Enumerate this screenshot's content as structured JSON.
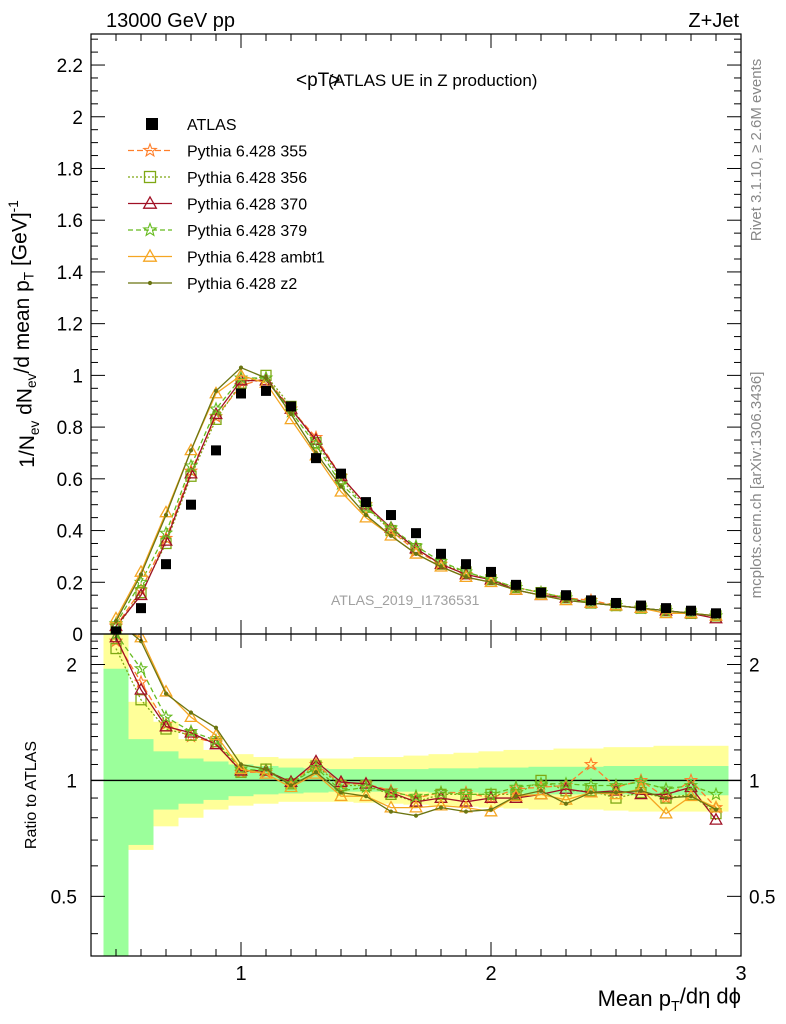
{
  "header": {
    "left": "13000 GeV pp",
    "right": "Z+Jet"
  },
  "side": {
    "rivet": "Rivet 3.1.10, ≥ 2.6M events",
    "mcplots": "mcplots.cern.ch [arXiv:1306.3436]"
  },
  "main_panel": {
    "title": "<pT>",
    "subtitle": "(ATLAS UE in Z production)",
    "ylabel": "1/N_ev dN_ev/d mean p_T [GeV]^-1",
    "analysis": "ATLAS_2019_I1736531"
  },
  "ratio_panel": {
    "ylabel": "Ratio to ATLAS"
  },
  "xlabel": "Mean p_T/dη dϕ",
  "colors": {
    "band_inner": "#9bff9b",
    "band_outer": "#ffff99",
    "data": "#000000"
  },
  "chart_data": [
    {
      "type": "line",
      "panel": "main",
      "xlim": [
        0.4,
        3.0
      ],
      "ylim": [
        0,
        2.32
      ],
      "xticks": [
        1,
        2,
        3
      ],
      "yticks": [
        0,
        0.2,
        0.4,
        0.6,
        0.8,
        1,
        1.2,
        1.4,
        1.6,
        1.8,
        2,
        2.2
      ],
      "ytick_labels": [
        "0",
        "0.2",
        "0.4",
        "0.6",
        "0.8",
        "1",
        "1.2",
        "1.4",
        "1.6",
        "1.8",
        "2",
        "2.2"
      ],
      "x": [
        0.5,
        0.6,
        0.7,
        0.8,
        0.9,
        1.0,
        1.1,
        1.2,
        1.3,
        1.4,
        1.5,
        1.6,
        1.7,
        1.8,
        1.9,
        2.0,
        2.1,
        2.2,
        2.3,
        2.4,
        2.5,
        2.6,
        2.7,
        2.8,
        2.9
      ],
      "data": {
        "name": "ATLAS",
        "values": [
          0.01,
          0.1,
          0.27,
          0.5,
          0.71,
          0.93,
          0.94,
          0.88,
          0.68,
          0.62,
          0.51,
          0.46,
          0.39,
          0.31,
          0.27,
          0.24,
          0.19,
          0.16,
          0.15,
          0.13,
          0.12,
          0.11,
          0.1,
          0.09,
          0.08
        ]
      },
      "series": [
        {
          "name": "Pythia 6.428 355",
          "color": "#ff7f2a",
          "dash": "6,3",
          "marker": "star",
          "values": [
            0.03,
            0.17,
            0.37,
            0.63,
            0.84,
            0.96,
            0.99,
            0.87,
            0.76,
            0.61,
            0.5,
            0.4,
            0.32,
            0.27,
            0.23,
            0.21,
            0.18,
            0.16,
            0.14,
            0.13,
            0.11,
            0.1,
            0.09,
            0.08,
            0.07
          ]
        },
        {
          "name": "Pythia 6.428 356",
          "color": "#7fa814",
          "dash": "2,2",
          "marker": "square",
          "values": [
            0.02,
            0.16,
            0.35,
            0.61,
            0.83,
            0.97,
            1.0,
            0.88,
            0.74,
            0.6,
            0.49,
            0.4,
            0.33,
            0.27,
            0.24,
            0.21,
            0.18,
            0.16,
            0.14,
            0.12,
            0.11,
            0.1,
            0.09,
            0.08,
            0.07
          ]
        },
        {
          "name": "Pythia 6.428 370",
          "color": "#a01025",
          "dash": "",
          "marker": "triangle",
          "values": [
            0.03,
            0.15,
            0.36,
            0.62,
            0.85,
            0.98,
            0.98,
            0.87,
            0.75,
            0.61,
            0.5,
            0.41,
            0.33,
            0.27,
            0.23,
            0.21,
            0.17,
            0.15,
            0.14,
            0.12,
            0.11,
            0.1,
            0.09,
            0.08,
            0.06
          ]
        },
        {
          "name": "Pythia 6.428 379",
          "color": "#66bb1f",
          "dash": "5,3",
          "marker": "star",
          "values": [
            0.04,
            0.2,
            0.39,
            0.65,
            0.87,
            0.99,
            0.99,
            0.86,
            0.73,
            0.58,
            0.49,
            0.41,
            0.34,
            0.28,
            0.24,
            0.21,
            0.18,
            0.16,
            0.14,
            0.12,
            0.11,
            0.1,
            0.09,
            0.08,
            0.07
          ]
        },
        {
          "name": "Pythia 6.428 ambt1",
          "color": "#f5a623",
          "dash": "",
          "marker": "triangle",
          "values": [
            0.06,
            0.24,
            0.47,
            0.71,
            0.93,
            1.0,
            0.97,
            0.83,
            0.69,
            0.55,
            0.45,
            0.38,
            0.31,
            0.26,
            0.22,
            0.2,
            0.17,
            0.15,
            0.13,
            0.12,
            0.11,
            0.1,
            0.08,
            0.08,
            0.07
          ]
        },
        {
          "name": "Pythia 6.428 z2",
          "color": "#6b7512",
          "dash": "",
          "marker": "dot",
          "values": [
            0.05,
            0.23,
            0.46,
            0.71,
            0.94,
            1.03,
            0.99,
            0.85,
            0.7,
            0.57,
            0.46,
            0.38,
            0.31,
            0.26,
            0.22,
            0.2,
            0.17,
            0.15,
            0.13,
            0.12,
            0.11,
            0.1,
            0.09,
            0.08,
            0.07
          ]
        }
      ]
    },
    {
      "type": "line",
      "panel": "ratio",
      "xlim": [
        0.4,
        3.0
      ],
      "ylim": [
        0.35,
        2.4
      ],
      "yscale": "log",
      "yticks": [
        0.5,
        1,
        2
      ],
      "ytick_labels": [
        "0.5",
        "1",
        "2"
      ],
      "x": [
        0.5,
        0.6,
        0.7,
        0.8,
        0.9,
        1.0,
        1.1,
        1.2,
        1.3,
        1.4,
        1.5,
        1.6,
        1.7,
        1.8,
        1.9,
        2.0,
        2.1,
        2.2,
        2.3,
        2.4,
        2.5,
        2.6,
        2.7,
        2.8,
        2.9
      ],
      "band_inner": {
        "low": [
          0.3,
          0.68,
          0.84,
          0.87,
          0.89,
          0.91,
          0.92,
          0.925,
          0.93,
          0.935,
          0.935,
          0.935,
          0.935,
          0.93,
          0.93,
          0.925,
          0.925,
          0.92,
          0.92,
          0.92,
          0.92,
          0.915,
          0.915,
          0.915,
          0.915
        ],
        "high": [
          1.95,
          1.28,
          1.19,
          1.14,
          1.12,
          1.1,
          1.09,
          1.08,
          1.075,
          1.07,
          1.07,
          1.07,
          1.07,
          1.075,
          1.075,
          1.08,
          1.08,
          1.085,
          1.085,
          1.085,
          1.09,
          1.09,
          1.09,
          1.09,
          1.09
        ]
      },
      "band_outer": {
        "low": [
          0.3,
          0.66,
          0.76,
          0.8,
          0.84,
          0.86,
          0.87,
          0.88,
          0.88,
          0.88,
          0.875,
          0.87,
          0.865,
          0.86,
          0.855,
          0.85,
          0.845,
          0.84,
          0.84,
          0.84,
          0.835,
          0.83,
          0.83,
          0.83,
          0.83
        ],
        "high": [
          2.4,
          1.6,
          1.42,
          1.28,
          1.2,
          1.17,
          1.15,
          1.14,
          1.14,
          1.14,
          1.15,
          1.15,
          1.16,
          1.17,
          1.18,
          1.19,
          1.2,
          1.2,
          1.21,
          1.21,
          1.22,
          1.22,
          1.23,
          1.23,
          1.23
        ]
      },
      "reference": 1,
      "series": [
        {
          "name": "Pythia 6.428 355",
          "values": [
            2.3,
            1.8,
            1.4,
            1.3,
            1.25,
            1.05,
            1.05,
            0.99,
            1.1,
            0.98,
            0.98,
            0.94,
            0.9,
            0.93,
            0.93,
            0.9,
            0.95,
            0.96,
            0.97,
            1.1,
            0.96,
            1.0,
            0.9,
            1.0,
            0.85
          ]
        },
        {
          "name": "Pythia 6.428 356",
          "values": [
            2.2,
            1.62,
            1.36,
            1.31,
            1.26,
            1.05,
            1.07,
            0.98,
            1.09,
            0.97,
            0.97,
            0.92,
            0.88,
            0.92,
            0.92,
            0.92,
            0.92,
            1.0,
            0.94,
            0.94,
            0.9,
            0.93,
            0.9,
            0.92,
            0.82
          ]
        },
        {
          "name": "Pythia 6.428 370",
          "values": [
            2.35,
            1.72,
            1.38,
            1.33,
            1.24,
            1.06,
            1.06,
            0.99,
            1.12,
            0.99,
            0.98,
            0.93,
            0.88,
            0.9,
            0.88,
            0.9,
            0.9,
            0.92,
            0.95,
            0.93,
            0.94,
            0.92,
            0.92,
            0.96,
            0.79
          ]
        },
        {
          "name": "Pythia 6.428 379",
          "values": [
            2.4,
            1.95,
            1.46,
            1.34,
            1.27,
            1.07,
            1.06,
            0.98,
            1.08,
            0.94,
            0.96,
            0.93,
            0.91,
            0.93,
            0.92,
            0.92,
            0.96,
            0.98,
            0.98,
            0.97,
            0.97,
            0.99,
            0.95,
            0.97,
            0.92
          ]
        },
        {
          "name": "Pythia 6.428 ambt1",
          "values": [
            2.5,
            2.35,
            1.7,
            1.46,
            1.31,
            1.07,
            1.04,
            0.96,
            1.04,
            0.91,
            0.91,
            0.85,
            0.85,
            0.86,
            0.85,
            0.83,
            0.91,
            0.92,
            0.89,
            0.93,
            0.92,
            0.95,
            0.82,
            0.91,
            0.85
          ]
        },
        {
          "name": "Pythia 6.428 z2",
          "values": [
            2.6,
            2.3,
            1.68,
            1.5,
            1.37,
            1.1,
            1.07,
            0.97,
            1.05,
            0.93,
            0.91,
            0.83,
            0.81,
            0.85,
            0.83,
            0.84,
            0.91,
            0.94,
            0.87,
            0.93,
            0.93,
            0.94,
            0.9,
            0.91,
            0.84
          ]
        }
      ]
    }
  ]
}
